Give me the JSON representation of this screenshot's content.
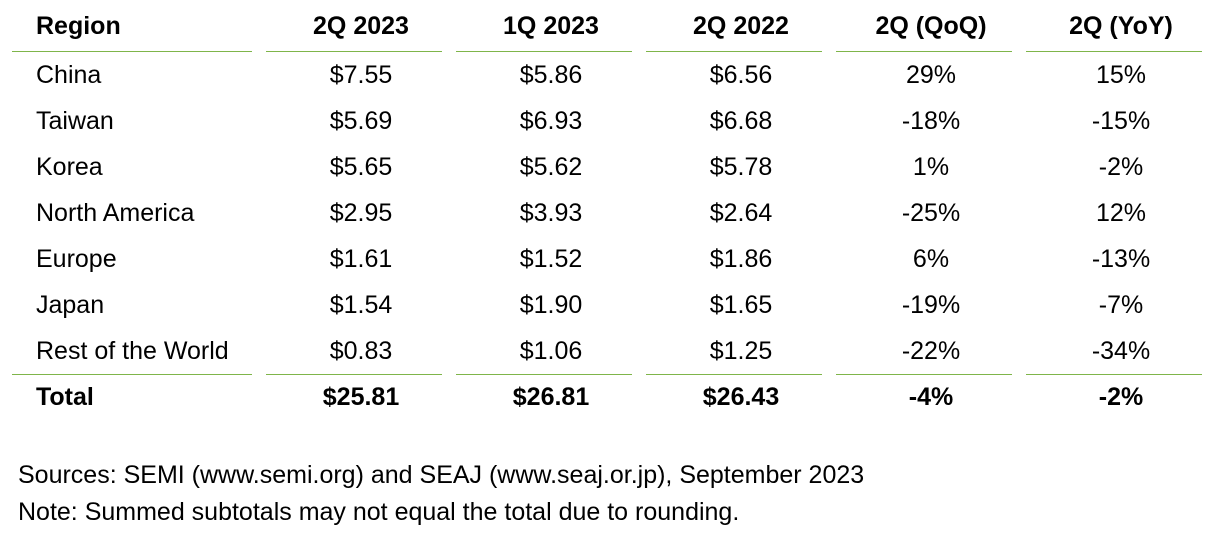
{
  "chart_data": {
    "type": "table",
    "columns": [
      "Region",
      "2Q 2023",
      "1Q 2023",
      "2Q 2022",
      "2Q (QoQ)",
      "2Q (YoY)"
    ],
    "rows": [
      [
        "China",
        "$7.55",
        "$5.86",
        "$6.56",
        "29%",
        "15%"
      ],
      [
        "Taiwan",
        "$5.69",
        "$6.93",
        "$6.68",
        "-18%",
        "-15%"
      ],
      [
        "Korea",
        "$5.65",
        "$5.62",
        "$5.78",
        "1%",
        "-2%"
      ],
      [
        "North America",
        "$2.95",
        "$3.93",
        "$2.64",
        "-25%",
        "12%"
      ],
      [
        "Europe",
        "$1.61",
        "$1.52",
        "$1.86",
        "6%",
        "-13%"
      ],
      [
        "Japan",
        "$1.54",
        "$1.90",
        "$1.65",
        "-19%",
        "-7%"
      ],
      [
        "Rest of the World",
        "$0.83",
        "$1.06",
        "$1.25",
        "-22%",
        "-34%"
      ]
    ],
    "total": [
      "Total",
      "$25.81",
      "$26.81",
      "$26.43",
      "-4%",
      "-2%"
    ],
    "rule_color": "#7fb54a"
  },
  "notes": {
    "sources": "Sources: SEMI (www.semi.org) and SEAJ (www.seaj.or.jp), September 2023",
    "note": "Note: Summed subtotals may not equal the total due to rounding."
  }
}
